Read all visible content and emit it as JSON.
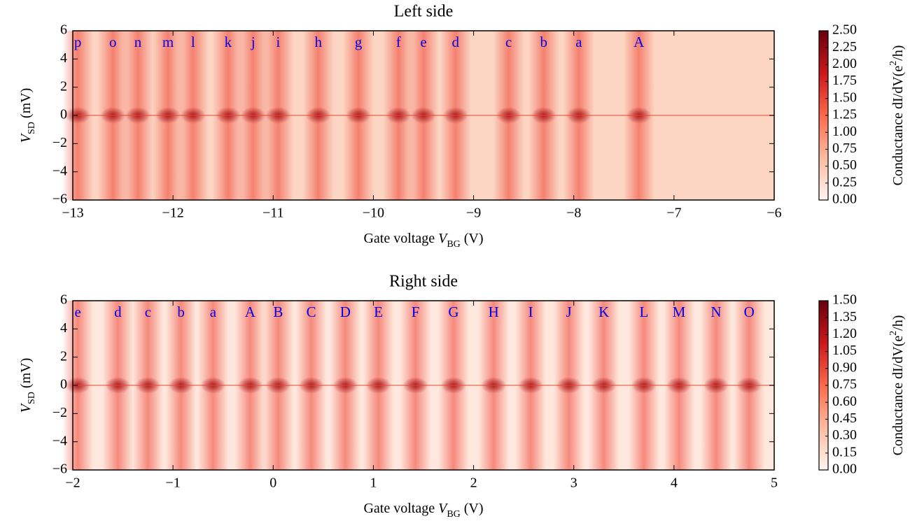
{
  "chart_data": [
    {
      "type": "heatmap",
      "title": "Left side",
      "xlabel": [
        "Gate voltage ",
        "V",
        "BG",
        " (V)"
      ],
      "ylabel": [
        "V",
        "SD",
        " (mV)"
      ],
      "colorbar_label": [
        "Conductance dI/dV(e",
        "2",
        "/h)"
      ],
      "colormap": "Reds",
      "xlim": [
        -13,
        -6
      ],
      "xticks": [
        {
          "value": -13,
          "label": "−13"
        },
        {
          "value": -12,
          "label": "−12"
        },
        {
          "value": -11,
          "label": "−11"
        },
        {
          "value": -10,
          "label": "−10"
        },
        {
          "value": -9,
          "label": "−9"
        },
        {
          "value": -8,
          "label": "−8"
        },
        {
          "value": -7,
          "label": "−7"
        },
        {
          "value": -6,
          "label": "−6"
        }
      ],
      "ylim": [
        -6,
        6
      ],
      "yticks": [
        {
          "value": -6,
          "label": "−6"
        },
        {
          "value": -4,
          "label": "−4"
        },
        {
          "value": -2,
          "label": "−2"
        },
        0,
        2,
        4,
        6
      ],
      "clim": [
        0,
        2.5
      ],
      "cticks": [
        {
          "value": 0,
          "label": "0.00"
        },
        {
          "value": 0.25,
          "label": "0.25"
        },
        {
          "value": 0.5,
          "label": "0.50"
        },
        {
          "value": 0.75,
          "label": "0.75"
        },
        {
          "value": 1,
          "label": "1.00"
        },
        {
          "value": 1.25,
          "label": "1.25"
        },
        {
          "value": 1.5,
          "label": "1.50"
        },
        {
          "value": 1.75,
          "label": "1.75"
        },
        {
          "value": 2,
          "label": "2.00"
        },
        {
          "value": 2.25,
          "label": "2.25"
        },
        {
          "value": 2.5,
          "label": "2.50"
        }
      ],
      "annotations": [
        {
          "text": "p",
          "x": -12.95,
          "y": 5.1
        },
        {
          "text": "o",
          "x": -12.6,
          "y": 5.1
        },
        {
          "text": "n",
          "x": -12.35,
          "y": 5.1
        },
        {
          "text": "m",
          "x": -12.05,
          "y": 5.1
        },
        {
          "text": "l",
          "x": -11.8,
          "y": 5.1
        },
        {
          "text": "k",
          "x": -11.45,
          "y": 5.1
        },
        {
          "text": "j",
          "x": -11.2,
          "y": 5.1
        },
        {
          "text": "i",
          "x": -10.95,
          "y": 5.1
        },
        {
          "text": "h",
          "x": -10.55,
          "y": 5.1
        },
        {
          "text": "g",
          "x": -10.15,
          "y": 5.1
        },
        {
          "text": "f",
          "x": -9.75,
          "y": 5.1
        },
        {
          "text": "e",
          "x": -9.5,
          "y": 5.1
        },
        {
          "text": "d",
          "x": -9.18,
          "y": 5.1
        },
        {
          "text": "c",
          "x": -8.65,
          "y": 5.1
        },
        {
          "text": "b",
          "x": -8.3,
          "y": 5.1
        },
        {
          "text": "a",
          "x": -7.95,
          "y": 5.1
        },
        {
          "text": "A",
          "x": -7.35,
          "y": 5.1
        }
      ]
    },
    {
      "type": "heatmap",
      "title": "Right side",
      "xlabel": [
        "Gate voltage ",
        "V",
        "BG",
        " (V)"
      ],
      "ylabel": [
        "V",
        "SD",
        " (mV)"
      ],
      "colorbar_label": [
        "Conductance dI/dV(e",
        "2",
        "/h)"
      ],
      "colormap": "Reds",
      "xlim": [
        -2,
        5
      ],
      "xticks": [
        {
          "value": -2,
          "label": "−2"
        },
        {
          "value": -1,
          "label": "−1"
        },
        0,
        1,
        2,
        3,
        4,
        5
      ],
      "ylim": [
        -6,
        6
      ],
      "yticks": [
        {
          "value": -6,
          "label": "−6"
        },
        {
          "value": -4,
          "label": "−4"
        },
        {
          "value": -2,
          "label": "−2"
        },
        0,
        2,
        4,
        6
      ],
      "clim": [
        0,
        1.5
      ],
      "cticks": [
        {
          "value": 0,
          "label": "0.00"
        },
        {
          "value": 0.15,
          "label": "0.15"
        },
        {
          "value": 0.3,
          "label": "0.30"
        },
        {
          "value": 0.45,
          "label": "0.45"
        },
        {
          "value": 0.6,
          "label": "0.60"
        },
        {
          "value": 0.75,
          "label": "0.75"
        },
        {
          "value": 0.9,
          "label": "0.90"
        },
        {
          "value": 1.05,
          "label": "1.05"
        },
        {
          "value": 1.2,
          "label": "1.20"
        },
        {
          "value": 1.35,
          "label": "1.35"
        },
        {
          "value": 1.5,
          "label": "1.50"
        }
      ],
      "annotations": [
        {
          "text": "e",
          "x": -1.95,
          "y": 5.1
        },
        {
          "text": "d",
          "x": -1.55,
          "y": 5.1
        },
        {
          "text": "c",
          "x": -1.25,
          "y": 5.1
        },
        {
          "text": "b",
          "x": -0.92,
          "y": 5.1
        },
        {
          "text": "a",
          "x": -0.6,
          "y": 5.1
        },
        {
          "text": "A",
          "x": -0.23,
          "y": 5.1
        },
        {
          "text": "B",
          "x": 0.05,
          "y": 5.1
        },
        {
          "text": "C",
          "x": 0.38,
          "y": 5.1
        },
        {
          "text": "D",
          "x": 0.72,
          "y": 5.1
        },
        {
          "text": "E",
          "x": 1.05,
          "y": 5.1
        },
        {
          "text": "F",
          "x": 1.42,
          "y": 5.1
        },
        {
          "text": "G",
          "x": 1.8,
          "y": 5.1
        },
        {
          "text": "H",
          "x": 2.2,
          "y": 5.1
        },
        {
          "text": "I",
          "x": 2.57,
          "y": 5.1
        },
        {
          "text": "J",
          "x": 2.95,
          "y": 5.1
        },
        {
          "text": "K",
          "x": 3.3,
          "y": 5.1
        },
        {
          "text": "L",
          "x": 3.7,
          "y": 5.1
        },
        {
          "text": "M",
          "x": 4.05,
          "y": 5.1
        },
        {
          "text": "N",
          "x": 4.42,
          "y": 5.1
        },
        {
          "text": "O",
          "x": 4.75,
          "y": 5.1
        }
      ]
    }
  ]
}
